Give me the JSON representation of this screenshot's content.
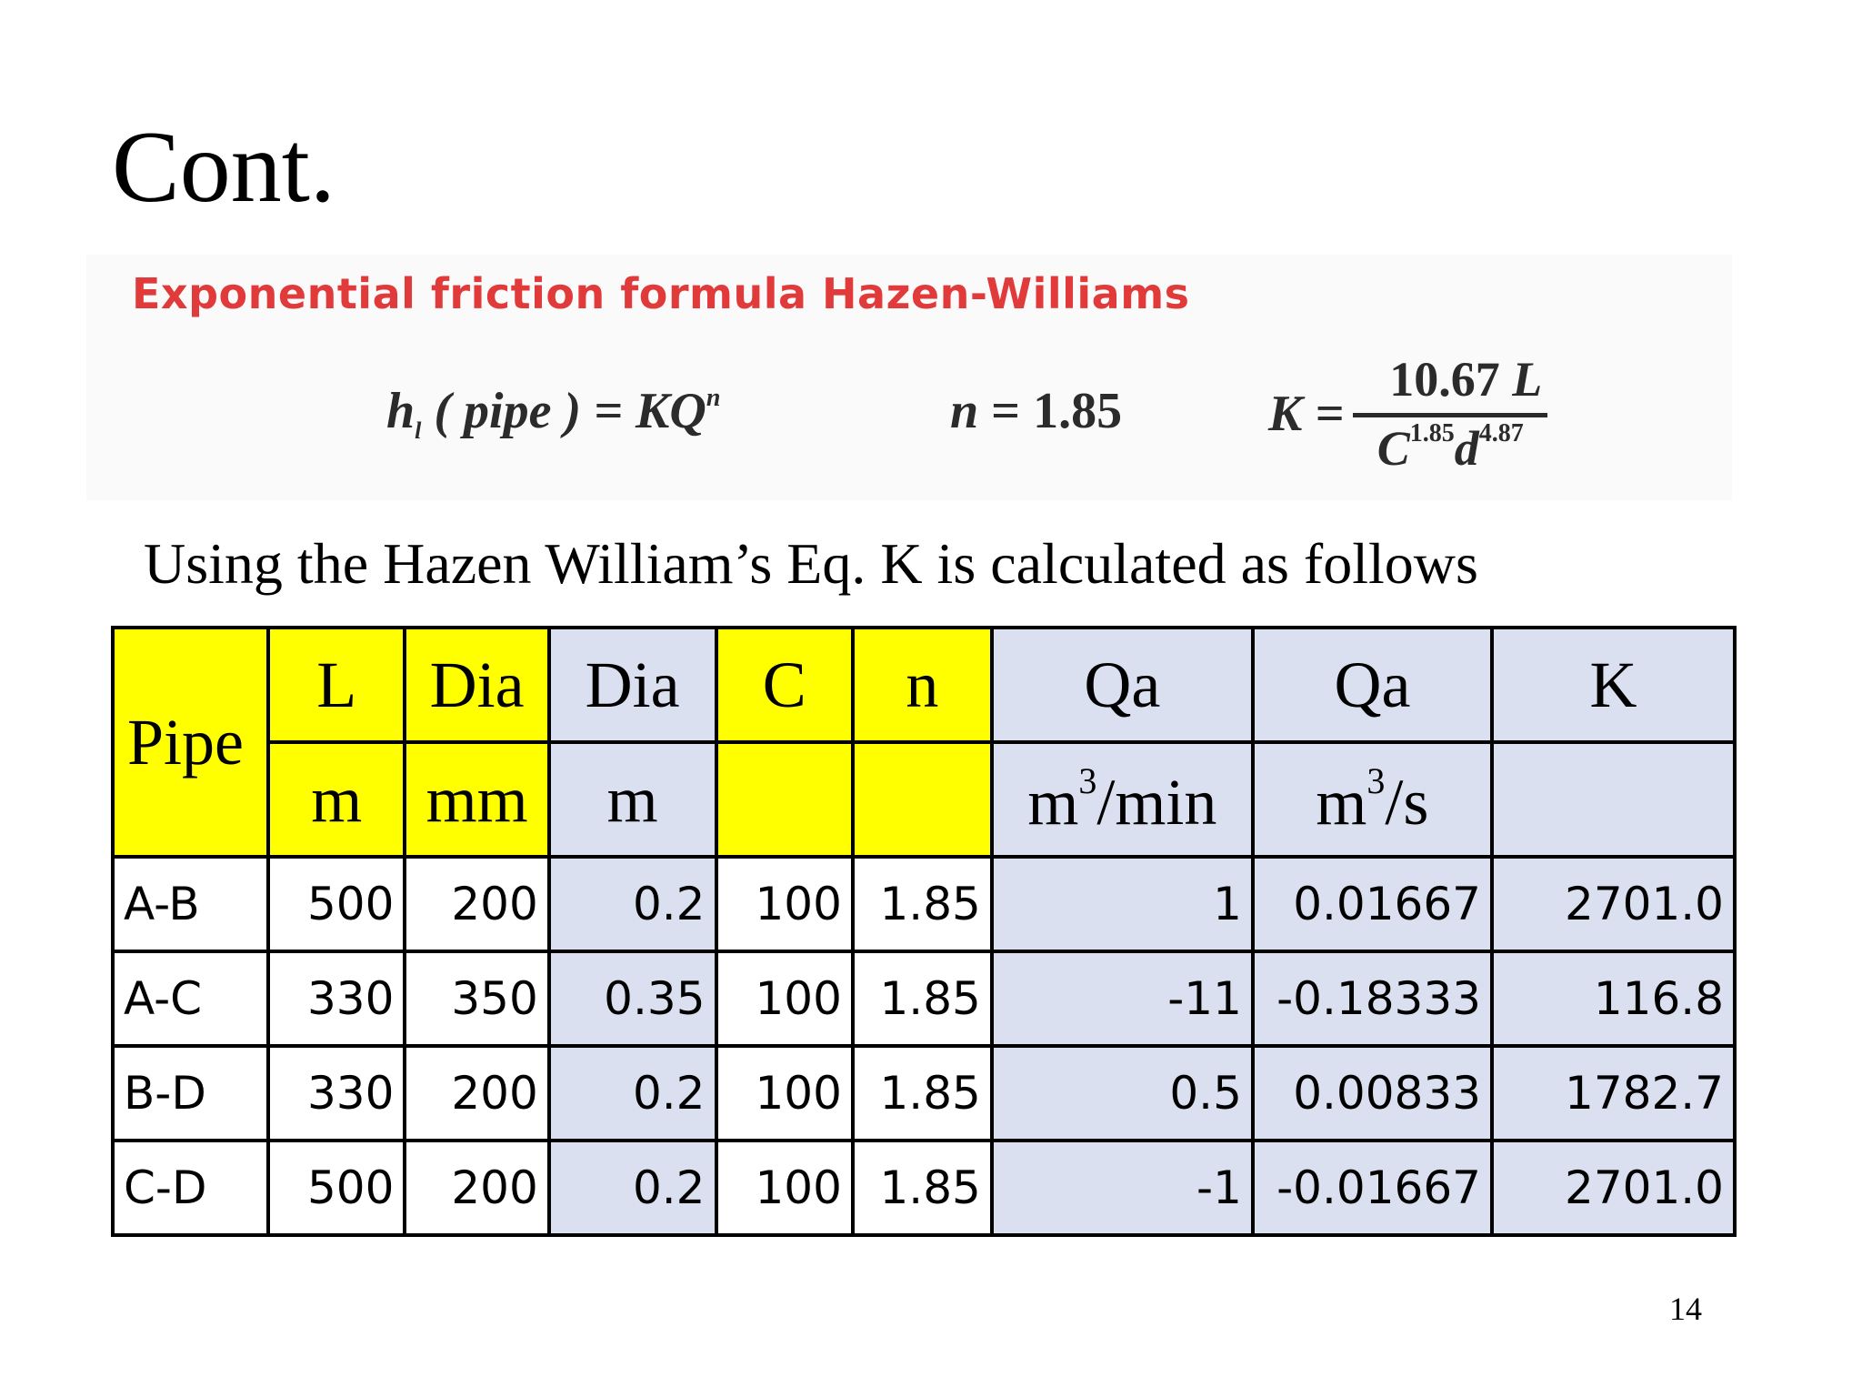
{
  "title": "Cont.",
  "formula": {
    "heading": "Exponential friction formula Hazen-Williams",
    "eq1_lhs": "h",
    "eq1_sub": "l",
    "eq1_mid": " ( pipe ) = KQ",
    "eq1_sup": "n",
    "eq2_var": "n",
    "eq2_val": " = 1.85",
    "eq3_lhs": "K =",
    "eq3_num_val": "10.67 ",
    "eq3_num_var": "L",
    "eq3_den_c": "C",
    "eq3_den_c_exp": "1.85",
    "eq3_den_d": "d",
    "eq3_den_d_exp": "4.87"
  },
  "intro": "Using the Hazen William’s Eq. K is calculated as follows",
  "table": {
    "headers_top": [
      "Pipe",
      "L",
      "Dia",
      "Dia",
      "C",
      "n",
      "Qa",
      "Qa",
      "K"
    ],
    "headers_units": [
      "m",
      "mm",
      "m",
      "",
      "",
      "m",
      "/min",
      "m",
      "/s",
      ""
    ],
    "unit_sup": "3",
    "rows": [
      [
        "A-B",
        "500",
        "200",
        "0.2",
        "100",
        "1.85",
        "1",
        "0.01667",
        "2701.0"
      ],
      [
        "A-C",
        "330",
        "350",
        "0.35",
        "100",
        "1.85",
        "-11",
        "-0.18333",
        "116.8"
      ],
      [
        "B-D",
        "330",
        "200",
        "0.2",
        "100",
        "1.85",
        "0.5",
        "0.00833",
        "1782.7"
      ],
      [
        "C-D",
        "500",
        "200",
        "0.2",
        "100",
        "1.85",
        "-1",
        "-0.01667",
        "2701.0"
      ]
    ]
  },
  "page_number": "14",
  "colors": {
    "heading_red": "#e03a3a",
    "yellow": "#ffff00",
    "light_blue": "#dae0f0"
  }
}
